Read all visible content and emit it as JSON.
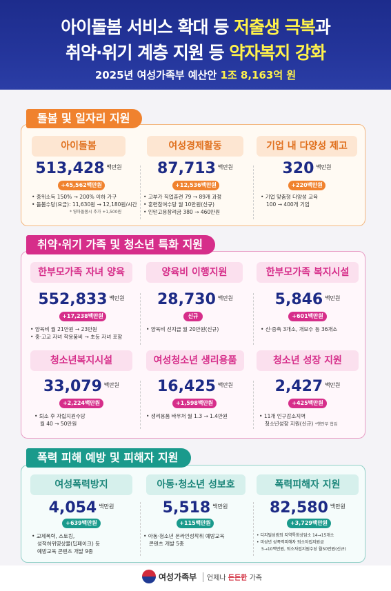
{
  "header": {
    "line1_pre": "아이돌봄 서비스 확대 등 ",
    "line1_hl": "저출생 극복",
    "line1_post": "과",
    "line2_pre": "취약·위기 계층 지원 등 ",
    "line2_hl": "약자복지 강화",
    "line3_pre": "2025년 여성가족부 예산안 ",
    "line3_hl": "1조 8,163억 원"
  },
  "sections": [
    {
      "title": "돌봄 및 일자리 지원",
      "color": "#f0822e",
      "cards": [
        {
          "title": "아이돌봄",
          "amount": "513,428",
          "unit": "백만원",
          "change": "+45,562백만원",
          "bullets": [
            "중위소득 150% → 200% 이하 가구",
            "돌봄수당(요금): 11,630원 → 12,180원/시간"
          ],
          "note": "* 영아돌봄시 추가 +1,500원"
        },
        {
          "title": "여성경제활동",
          "amount": "87,713",
          "unit": "백만원",
          "change": "+12,536백만원",
          "bullets": [
            "고부가 직업훈련 79 → 89개 과정",
            "훈련참여수당 월 10만원(신규)",
            "인턴고용장려금 380 → 460만원"
          ]
        },
        {
          "title": "기업 내 다양성 제고",
          "amount": "320",
          "unit": "백만원",
          "change": "+220백만원",
          "bullets": [
            "기업 맞춤형 다양성 교육",
            "100 → 400개 기업"
          ]
        }
      ]
    },
    {
      "title": "취약·위기 가족 및 청소년 특화 지원",
      "color": "#d62e8a",
      "cards": [
        {
          "title": "한부모가족 자녀 양육",
          "amount": "552,833",
          "unit": "백만원",
          "change": "+17,238백만원",
          "bullets": [
            "양육비 월 21만원 → 23만원",
            "중·고교 자녀 학용품비 → 초등 자녀 포함"
          ]
        },
        {
          "title": "양육비 이행지원",
          "amount": "28,730",
          "unit": "백만원",
          "change": "신규",
          "bullets": [
            "양육비 선지급 월 20만원(신규)"
          ]
        },
        {
          "title": "한부모가족 복지시설",
          "amount": "5,846",
          "unit": "백만원",
          "change": "+601백만원",
          "bullets": [
            "신·증축 3개소, 개보수 등 36개소"
          ]
        },
        {
          "title": "청소년복지시설",
          "amount": "33,079",
          "unit": "백만원",
          "change": "+2,224백만원",
          "bullets": [
            "퇴소 후 자립지원수당",
            "월 40 → 50만원"
          ]
        },
        {
          "title": "여성청소년 생리용품",
          "amount": "16,425",
          "unit": "백만원",
          "change": "+1,598백만원",
          "bullets": [
            "생리용품 바우처 월 1.3 → 1.4만원"
          ]
        },
        {
          "title": "청소년 성장 지원",
          "amount": "2,427",
          "unit": "백만원",
          "change": "+425백만원",
          "bullets": [
            "11개 인구감소지역",
            "청소년성장 지원(신규)"
          ],
          "note": "*행안부 협업"
        }
      ]
    },
    {
      "title": "폭력 피해 예방 및 피해자 지원",
      "color": "#1a9a8c",
      "cards": [
        {
          "title": "여성폭력방지",
          "amount": "4,054",
          "unit": "백만원",
          "change": "+639백만원",
          "bullets": [
            "교제폭력, 스토킹,",
            "성적허위영상물(딥페이크) 등",
            "예방교육 콘텐츠 개발 9종"
          ]
        },
        {
          "title": "아동·청소년 성보호",
          "amount": "5,518",
          "unit": "백만원",
          "change": "+115백만원",
          "bullets": [
            "아동·청소년 온라인성착취 예방교육",
            "콘텐츠 개발 5종"
          ]
        },
        {
          "title": "폭력피해자 지원",
          "amount": "82,580",
          "unit": "백만원",
          "change": "+3,729백만원",
          "bullets": [
            "디지털성범죄 지역특화상담소 14→15개소",
            "미성년 성폭력피해자 퇴소자립지원금",
            "5→10백만원, 퇴소자립지원수당 월50만원(신규)"
          ]
        }
      ]
    }
  ],
  "footer": {
    "ministry": "여성가족부",
    "slogan_pre": "언제나 ",
    "slogan_hl": "든든한",
    "slogan_post": " 가족"
  }
}
